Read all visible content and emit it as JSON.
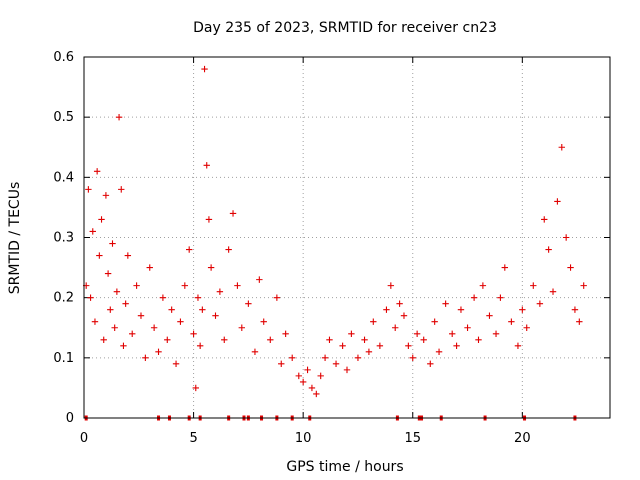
{
  "chart_data": {
    "type": "scatter",
    "title": "Day 235 of 2023, SRMTID for receiver cn23",
    "xlabel": "GPS time / hours",
    "ylabel": "SRMTID / TECUs",
    "xlim": [
      0,
      24
    ],
    "ylim": [
      0,
      0.6
    ],
    "xticks": [
      0,
      5,
      10,
      15,
      20
    ],
    "yticks": [
      0,
      0.1,
      0.2,
      0.3,
      0.4,
      0.5,
      0.6
    ],
    "xtick_labels": [
      "0",
      "5",
      "10",
      "15",
      "20"
    ],
    "ytick_labels": [
      "0",
      "0.1",
      "0.2",
      "0.3",
      "0.4",
      "0.5",
      "0.6"
    ],
    "grid": true,
    "marker": "+",
    "color": "#e00000",
    "series": [
      {
        "name": "SRMTID",
        "x": [
          0.1,
          0.2,
          0.3,
          0.4,
          0.5,
          0.6,
          0.7,
          0.8,
          0.9,
          1.0,
          1.1,
          1.2,
          1.3,
          1.4,
          1.5,
          1.6,
          1.7,
          1.8,
          1.9,
          2.0,
          2.2,
          2.4,
          2.6,
          2.8,
          3.0,
          3.2,
          3.4,
          3.6,
          3.8,
          4.0,
          4.2,
          4.4,
          4.6,
          4.8,
          5.0,
          5.1,
          5.2,
          5.3,
          5.4,
          5.5,
          5.6,
          5.7,
          5.8,
          6.0,
          6.2,
          6.4,
          6.6,
          6.8,
          7.0,
          7.2,
          7.5,
          7.8,
          8.0,
          8.2,
          8.5,
          8.8,
          9.0,
          9.2,
          9.5,
          9.8,
          10.0,
          10.2,
          10.4,
          10.6,
          10.8,
          11.0,
          11.2,
          11.5,
          11.8,
          12.0,
          12.2,
          12.5,
          12.8,
          13.0,
          13.2,
          13.5,
          13.8,
          14.0,
          14.2,
          14.4,
          14.6,
          14.8,
          15.0,
          15.2,
          15.5,
          15.8,
          16.0,
          16.2,
          16.5,
          16.8,
          17.0,
          17.2,
          17.5,
          17.8,
          18.0,
          18.2,
          18.5,
          18.8,
          19.0,
          19.2,
          19.5,
          19.8,
          20.0,
          20.2,
          20.5,
          20.8,
          21.0,
          21.2,
          21.4,
          21.6,
          21.8,
          22.0,
          22.2,
          22.4,
          22.6,
          22.8
        ],
        "y": [
          0.22,
          0.38,
          0.2,
          0.31,
          0.16,
          0.41,
          0.27,
          0.33,
          0.13,
          0.37,
          0.24,
          0.18,
          0.29,
          0.15,
          0.21,
          0.5,
          0.38,
          0.12,
          0.19,
          0.27,
          0.14,
          0.22,
          0.17,
          0.1,
          0.25,
          0.15,
          0.11,
          0.2,
          0.13,
          0.18,
          0.09,
          0.16,
          0.22,
          0.28,
          0.14,
          0.05,
          0.2,
          0.12,
          0.18,
          0.58,
          0.42,
          0.33,
          0.25,
          0.17,
          0.21,
          0.13,
          0.28,
          0.34,
          0.22,
          0.15,
          0.19,
          0.11,
          0.23,
          0.16,
          0.13,
          0.2,
          0.09,
          0.14,
          0.1,
          0.07,
          0.06,
          0.08,
          0.05,
          0.04,
          0.07,
          0.1,
          0.13,
          0.09,
          0.12,
          0.08,
          0.14,
          0.1,
          0.13,
          0.11,
          0.16,
          0.12,
          0.18,
          0.22,
          0.15,
          0.19,
          0.17,
          0.12,
          0.1,
          0.14,
          0.13,
          0.09,
          0.16,
          0.11,
          0.19,
          0.14,
          0.12,
          0.18,
          0.15,
          0.2,
          0.13,
          0.22,
          0.17,
          0.14,
          0.2,
          0.25,
          0.16,
          0.12,
          0.18,
          0.15,
          0.22,
          0.19,
          0.33,
          0.28,
          0.21,
          0.36,
          0.45,
          0.3,
          0.25,
          0.18,
          0.16,
          0.22
        ]
      }
    ],
    "zero_markers_x": [
      0.1,
      3.4,
      3.9,
      4.8,
      5.3,
      6.6,
      7.3,
      7.5,
      8.1,
      8.8,
      9.5,
      10.3,
      14.3,
      15.3,
      15.4,
      16.3,
      18.3,
      20.1,
      22.4
    ]
  }
}
